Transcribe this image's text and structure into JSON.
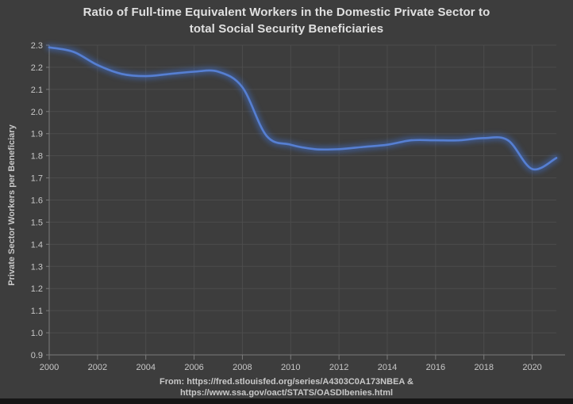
{
  "title": {
    "line1": "Ratio of Full-time Equivalent Workers in the Domestic Private Sector to",
    "line2": "total Social Security Beneficiaries"
  },
  "caption": {
    "line1": "From: https://fred.stlouisfed.org/series/A4303C0A173NBEA &",
    "line2": "https://www.ssa.gov/oact/STATS/OASDIbenies.html"
  },
  "colors": {
    "background": "#3d3d3d",
    "grid": "#4c4c4c",
    "axis": "#7b7b7b",
    "tick_label": "#c8c8c8",
    "title": "#e0e0e0",
    "line": "#567fd2",
    "line_glow": "#3f6ec8",
    "footer_bar": "#161616"
  },
  "chart_data": {
    "type": "line",
    "title": "Ratio of Full-time Equivalent Workers in the Domestic Private Sector to total Social Security Beneficiaries",
    "xlabel": "",
    "ylabel": "Private Sector Workers per Beneficiary",
    "x": [
      2000,
      2001,
      2002,
      2003,
      2004,
      2005,
      2006,
      2007,
      2008,
      2009,
      2010,
      2011,
      2012,
      2013,
      2014,
      2015,
      2016,
      2017,
      2018,
      2019,
      2020,
      2021
    ],
    "series": [
      {
        "name": "Private Sector Workers per Beneficiary",
        "values": [
          2.29,
          2.27,
          2.21,
          2.17,
          2.16,
          2.17,
          2.18,
          2.18,
          2.11,
          1.89,
          1.85,
          1.83,
          1.83,
          1.84,
          1.85,
          1.87,
          1.87,
          1.87,
          1.88,
          1.87,
          1.74,
          1.79
        ]
      }
    ],
    "xlim": [
      2000,
      2021
    ],
    "ylim": [
      0.9,
      2.3
    ],
    "xticks": [
      2000,
      2002,
      2004,
      2006,
      2008,
      2010,
      2012,
      2014,
      2016,
      2018,
      2020
    ],
    "yticks": [
      0.9,
      1.0,
      1.1,
      1.2,
      1.3,
      1.4,
      1.5,
      1.6,
      1.7,
      1.8,
      1.9,
      2.0,
      2.1,
      2.2,
      2.3
    ],
    "grid": true,
    "legend": "none",
    "smoothing": true,
    "glow": true
  }
}
